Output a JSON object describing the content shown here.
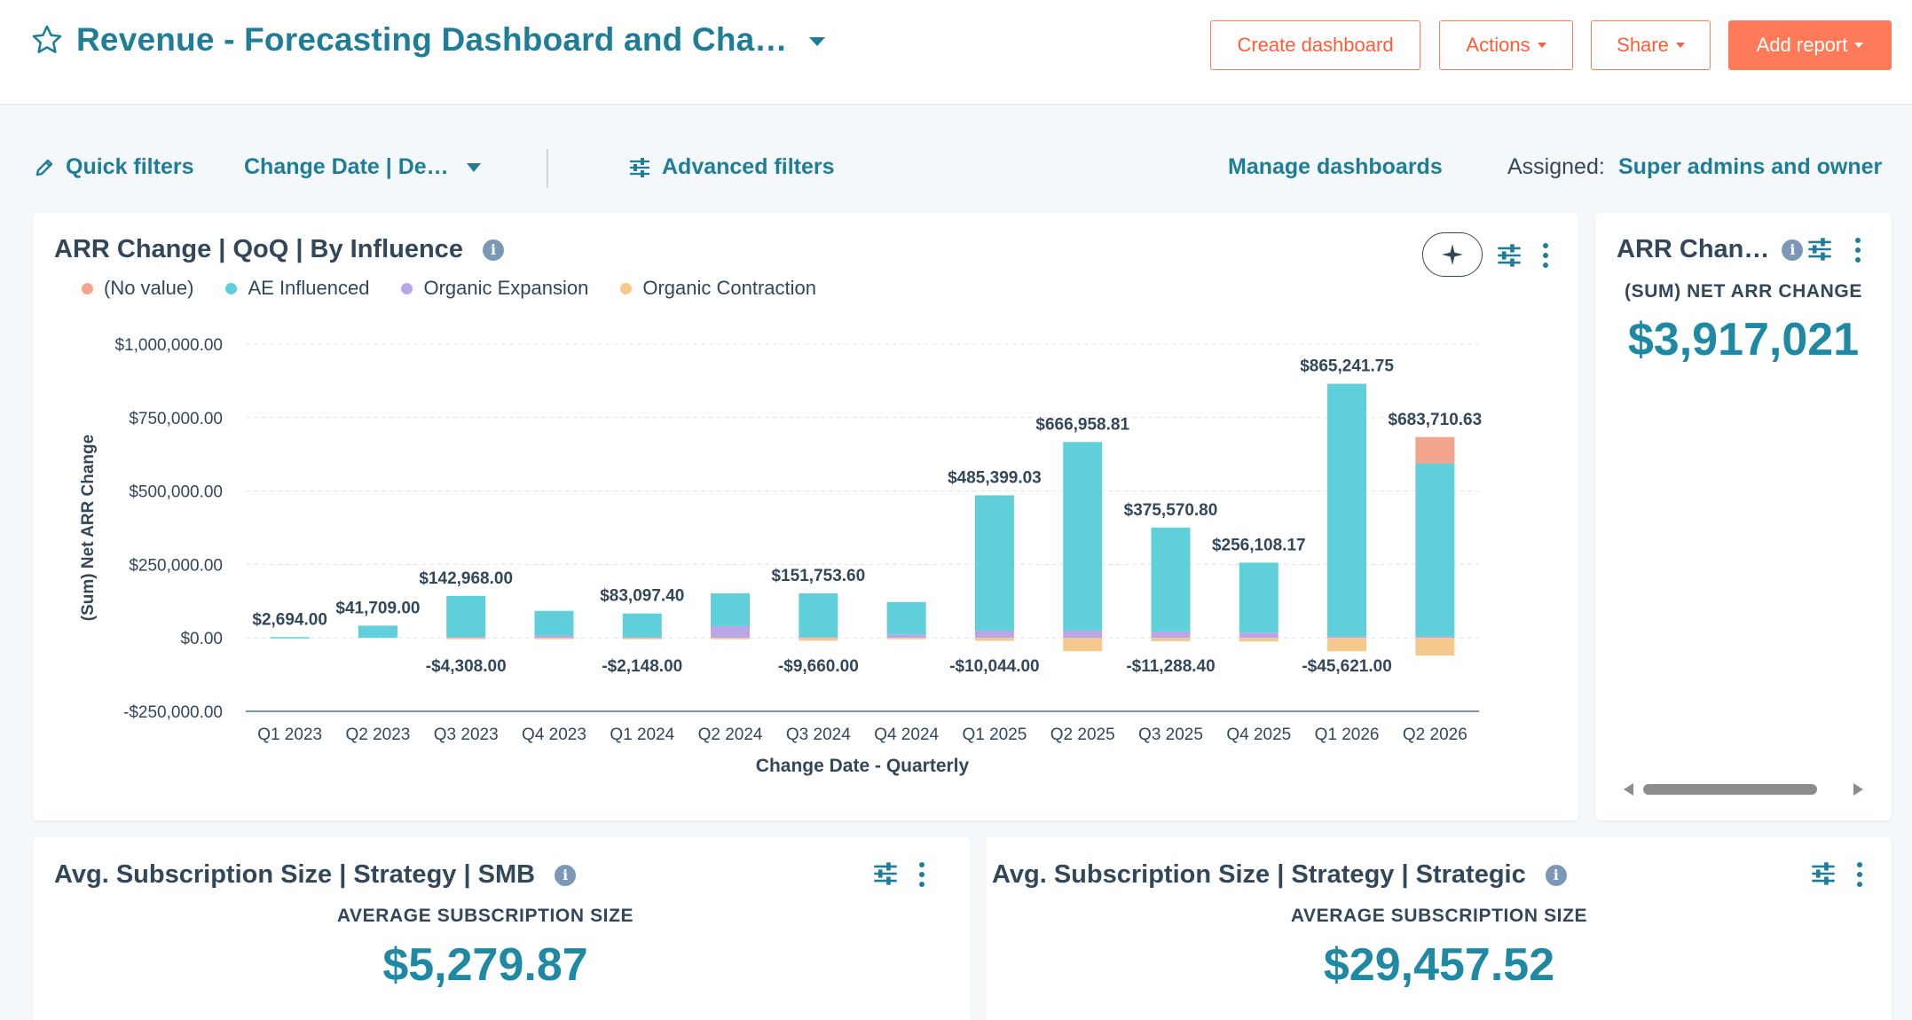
{
  "header": {
    "title": "Revenue - Forecasting Dashboard and Cha…",
    "buttons": {
      "create_dashboard": "Create dashboard",
      "actions": "Actions",
      "share": "Share",
      "add_report": "Add report"
    }
  },
  "filters": {
    "quick_filters": "Quick filters",
    "change_date": "Change Date | De…",
    "advanced_filters": "Advanced filters",
    "manage_dashboards": "Manage dashboards",
    "assigned_label": "Assigned:",
    "assigned_value": "Super admins and owner"
  },
  "main_report": {
    "title": "ARR Change | QoQ | By Influence",
    "legend": [
      {
        "label": "(No value)",
        "color": "#f2a58e"
      },
      {
        "label": "AE Influenced",
        "color": "#5fcfd9"
      },
      {
        "label": "Organic Expansion",
        "color": "#b9a6e6"
      },
      {
        "label": "Organic Contraction",
        "color": "#f5c98c"
      }
    ]
  },
  "chart_data": {
    "type": "bar",
    "stacked": true,
    "title": "ARR Change | QoQ | By Influence",
    "xlabel": "Change Date - Quarterly",
    "ylabel": "(Sum) Net ARR Change",
    "ylim": [
      -250000,
      1000000
    ],
    "yticks": [
      -250000,
      0,
      250000,
      500000,
      750000,
      1000000
    ],
    "ytick_labels": [
      "-$250,000.00",
      "$0.00",
      "$250,000.00",
      "$500,000.00",
      "$750,000.00",
      "$1,000,000.00"
    ],
    "categories": [
      "Q1 2023",
      "Q2 2023",
      "Q3 2023",
      "Q4 2023",
      "Q1 2024",
      "Q2 2024",
      "Q3 2024",
      "Q4 2024",
      "Q1 2025",
      "Q2 2025",
      "Q3 2025",
      "Q4 2025",
      "Q1 2026",
      "Q2 2026"
    ],
    "series": [
      {
        "name": "Organic Expansion",
        "color": "#b9a6e6",
        "values": [
          0,
          0,
          3000,
          8000,
          2000,
          40000,
          3000,
          12000,
          25000,
          25000,
          22000,
          18000,
          5000,
          5000
        ]
      },
      {
        "name": "AE Influenced",
        "color": "#5fcfd9",
        "values": [
          2694,
          41709,
          139968,
          84000,
          81097,
          111753,
          148753,
          110000,
          460399,
          641958.81,
          353570.8,
          238108.17,
          860241.75,
          588710.63
        ]
      },
      {
        "name": "(No value)",
        "color": "#f2a58e",
        "values": [
          0,
          0,
          0,
          0,
          0,
          0,
          0,
          0,
          0,
          0,
          0,
          0,
          0,
          90000
        ]
      },
      {
        "name": "Organic Contraction",
        "color": "#f5c98c",
        "values": [
          0,
          0,
          -4308,
          -2000,
          -2148,
          -1000,
          -9660,
          -3000,
          -10044,
          -45000,
          -11288.4,
          -12000,
          -45621,
          -60000
        ]
      }
    ],
    "total_labels": [
      "$2,694.00",
      "$41,709.00",
      "$142,968.00",
      "",
      "$83,097.40",
      "",
      "$151,753.60",
      "",
      "$485,399.03",
      "$666,958.81",
      "$375,570.80",
      "$256,108.17",
      "$865,241.75",
      "$683,710.63"
    ],
    "total_values": [
      2694,
      41709,
      142968,
      null,
      83097.4,
      null,
      151753.6,
      null,
      485399.03,
      666958.81,
      375570.8,
      256108.17,
      865241.75,
      683710.63
    ],
    "negative_labels": [
      "",
      "",
      "-$4,308.00",
      "",
      "-$2,148.00",
      "",
      "-$9,660.00",
      "",
      "-$10,044.00",
      "",
      "-$11,288.40",
      "",
      "-$45,621.00",
      ""
    ],
    "negative_values": [
      null,
      null,
      -4308,
      null,
      -2148,
      null,
      -9660,
      null,
      -10044,
      null,
      -11288.4,
      null,
      -45621,
      null
    ]
  },
  "side_report": {
    "title": "ARR Chan…",
    "metric_label": "(SUM) NET ARR CHANGE",
    "metric_value": "$3,917,021"
  },
  "smb_report": {
    "title": "Avg. Subscription Size | Strategy | SMB",
    "metric_label": "AVERAGE SUBSCRIPTION SIZE",
    "metric_value": "$5,279.87"
  },
  "strategic_report": {
    "title": "Avg. Subscription Size | Strategy | Strategic",
    "metric_label": "AVERAGE SUBSCRIPTION SIZE",
    "metric_value": "$29,457.52"
  },
  "colors": {
    "brand_teal": "#1f7d97",
    "metric_teal": "#1f88a3",
    "accent_orange": "#ff7a59"
  }
}
